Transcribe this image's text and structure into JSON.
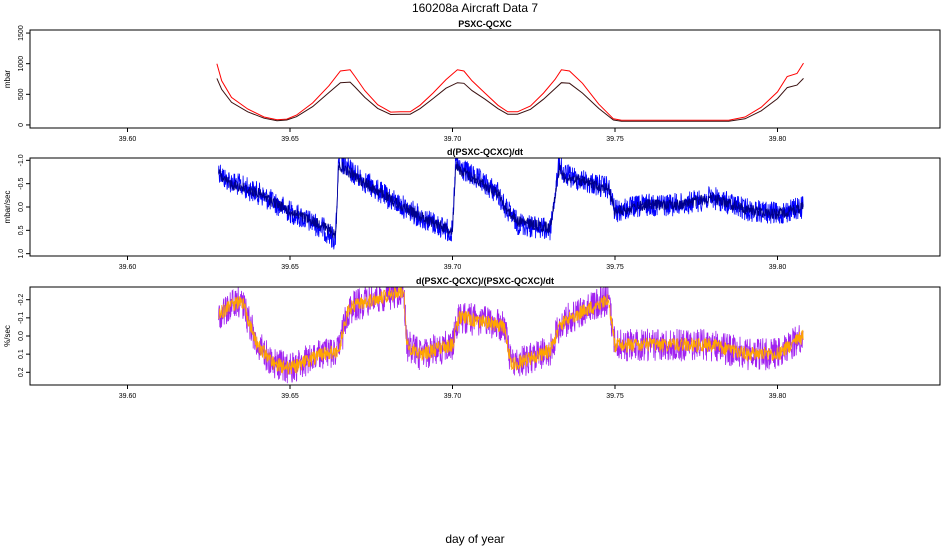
{
  "figure": {
    "title": "160208a   Aircraft Data 7",
    "xlabel": "day of year"
  },
  "colors": {
    "red": "#ff0000",
    "dark": "#3a1010",
    "blue": "#0000ff",
    "navy": "#00008b",
    "purple": "#a020f0",
    "orange": "#ffa500"
  },
  "chart_data": [
    {
      "type": "line",
      "title": "PSXC-QCXC",
      "xlabel": "",
      "ylabel": "mbar",
      "xlim": [
        39.57,
        39.85
      ],
      "ylim": [
        -50,
        1550
      ],
      "x_ticks": [
        "39.60",
        "39.65",
        "39.70",
        "39.75",
        "39.80"
      ],
      "y_ticks": [
        "0",
        "500",
        "1000",
        "1500"
      ],
      "series": [
        {
          "name": "PSXC-QCXC (red)",
          "color": "red",
          "x": [
            39.6275,
            39.629,
            39.632,
            39.637,
            39.642,
            39.646,
            39.649,
            39.652,
            39.657,
            39.662,
            39.6655,
            39.6685,
            39.67,
            39.673,
            39.677,
            39.681,
            39.684,
            39.687,
            39.69,
            39.694,
            39.698,
            39.7015,
            39.7035,
            39.706,
            39.71,
            39.714,
            39.717,
            39.72,
            39.724,
            39.728,
            39.7315,
            39.7335,
            39.736,
            39.74,
            39.745,
            39.7495,
            39.752,
            39.76,
            39.77,
            39.78,
            39.785,
            39.79,
            39.795,
            39.8,
            39.803,
            39.806,
            39.808
          ],
          "y": [
            1000,
            720,
            450,
            260,
            130,
            85,
            95,
            160,
            360,
            640,
            880,
            900,
            790,
            560,
            330,
            210,
            215,
            215,
            320,
            520,
            740,
            900,
            880,
            720,
            520,
            320,
            215,
            215,
            310,
            520,
            740,
            900,
            880,
            680,
            340,
            100,
            75,
            75,
            75,
            75,
            75,
            130,
            290,
            540,
            790,
            840,
            1010
          ]
        },
        {
          "name": "PSXC-QCXC (dark)",
          "color": "dark",
          "x": [
            39.6275,
            39.629,
            39.632,
            39.637,
            39.642,
            39.646,
            39.649,
            39.652,
            39.657,
            39.662,
            39.6655,
            39.6685,
            39.67,
            39.673,
            39.677,
            39.681,
            39.684,
            39.687,
            39.69,
            39.694,
            39.698,
            39.7015,
            39.7035,
            39.706,
            39.71,
            39.714,
            39.717,
            39.72,
            39.724,
            39.728,
            39.7315,
            39.7335,
            39.736,
            39.74,
            39.745,
            39.7495,
            39.752,
            39.76,
            39.77,
            39.78,
            39.785,
            39.79,
            39.795,
            39.8,
            39.803,
            39.806,
            39.808
          ],
          "y": [
            760,
            580,
            370,
            215,
            110,
            70,
            80,
            135,
            300,
            530,
            690,
            700,
            620,
            450,
            270,
            170,
            175,
            175,
            265,
            430,
            600,
            690,
            680,
            560,
            420,
            265,
            175,
            175,
            255,
            420,
            590,
            690,
            680,
            520,
            270,
            80,
            60,
            60,
            60,
            60,
            60,
            100,
            230,
            430,
            610,
            650,
            760
          ]
        }
      ]
    },
    {
      "type": "line",
      "title": "d(PSXC-QCXC)/dt",
      "xlabel": "",
      "ylabel": "mbar/sec",
      "xlim": [
        39.57,
        39.85
      ],
      "ylim": [
        1.05,
        -1.05
      ],
      "x_ticks": [
        "39.60",
        "39.65",
        "39.70",
        "39.75",
        "39.80"
      ],
      "y_ticks": [
        "-1.0",
        "-0.5",
        "0.0",
        "0.5",
        "1.0"
      ],
      "series": [
        {
          "name": "d(PSXC-QCXC)/dt (blue)",
          "color": "blue",
          "x": [
            39.628,
            39.63,
            39.64,
            39.65,
            39.66,
            39.664,
            39.665,
            39.668,
            39.68,
            39.69,
            39.7,
            39.701,
            39.702,
            39.714,
            39.716,
            39.72,
            39.73,
            39.733,
            39.734,
            39.748,
            39.75,
            39.76,
            39.77,
            39.78,
            39.79,
            39.8,
            39.808
          ],
          "y": [
            -0.8,
            -0.6,
            -0.3,
            0.1,
            0.45,
            0.7,
            -1.0,
            -0.8,
            -0.2,
            0.2,
            0.55,
            -1.0,
            -0.85,
            -0.3,
            0.0,
            0.35,
            0.5,
            -1.0,
            -0.7,
            -0.4,
            0.1,
            -0.05,
            -0.05,
            -0.2,
            0.05,
            0.15,
            0.0
          ],
          "noise": 0.25
        },
        {
          "name": "d(PSXC-QCXC)/dt (navy)",
          "color": "navy",
          "x": [
            39.628,
            39.63,
            39.64,
            39.65,
            39.66,
            39.664,
            39.665,
            39.668,
            39.68,
            39.69,
            39.7,
            39.701,
            39.702,
            39.714,
            39.716,
            39.72,
            39.73,
            39.733,
            39.734,
            39.748,
            39.75,
            39.76,
            39.77,
            39.78,
            39.79,
            39.8,
            39.808
          ],
          "y": [
            -0.75,
            -0.55,
            -0.3,
            0.1,
            0.4,
            0.6,
            -0.9,
            -0.75,
            -0.2,
            0.2,
            0.5,
            -0.9,
            -0.8,
            -0.3,
            0.0,
            0.3,
            0.45,
            -0.9,
            -0.65,
            -0.4,
            0.1,
            -0.05,
            -0.05,
            -0.2,
            0.05,
            0.15,
            0.0
          ],
          "noise": 0.12
        }
      ]
    },
    {
      "type": "line",
      "title": "d(PSXC-QCXC)/(PSXC-QCXC)/dt",
      "xlabel": "",
      "ylabel": "%/sec",
      "xlim": [
        39.57,
        39.85
      ],
      "ylim": [
        0.27,
        -0.27
      ],
      "x_ticks": [
        "39.60",
        "39.65",
        "39.70",
        "39.75",
        "39.80"
      ],
      "y_ticks": [
        "-0.2",
        "-0.1",
        "0.0",
        "0.1",
        "0.2"
      ],
      "series": [
        {
          "name": "d(PSXC-QCXC)/(PSXC-QCXC)/dt (purple)",
          "color": "purple",
          "x": [
            39.628,
            39.635,
            39.64,
            39.645,
            39.65,
            39.66,
            39.665,
            39.668,
            39.675,
            39.685,
            39.686,
            39.69,
            39.7,
            39.702,
            39.704,
            39.716,
            39.718,
            39.72,
            39.73,
            39.733,
            39.736,
            39.748,
            39.75,
            39.76,
            39.77,
            39.78,
            39.79,
            39.8,
            39.808
          ],
          "y": [
            -0.12,
            -0.2,
            0.05,
            0.15,
            0.18,
            0.1,
            0.08,
            -0.15,
            -0.2,
            -0.25,
            0.05,
            0.1,
            0.05,
            -0.1,
            -0.1,
            -0.05,
            0.15,
            0.15,
            0.08,
            -0.05,
            -0.1,
            -0.2,
            0.05,
            0.05,
            0.05,
            0.05,
            0.1,
            0.1,
            0.0
          ],
          "noise": 0.09
        },
        {
          "name": "d(PSXC-QCXC)/(PSXC-QCXC)/dt (orange)",
          "color": "orange",
          "x": [
            39.628,
            39.635,
            39.64,
            39.645,
            39.65,
            39.66,
            39.665,
            39.668,
            39.675,
            39.685,
            39.686,
            39.69,
            39.7,
            39.702,
            39.704,
            39.716,
            39.718,
            39.72,
            39.73,
            39.733,
            39.736,
            39.748,
            39.75,
            39.76,
            39.77,
            39.78,
            39.79,
            39.8,
            39.808
          ],
          "y": [
            -0.12,
            -0.2,
            0.05,
            0.15,
            0.18,
            0.1,
            0.08,
            -0.15,
            -0.2,
            -0.25,
            0.05,
            0.1,
            0.05,
            -0.1,
            -0.1,
            -0.05,
            0.15,
            0.15,
            0.08,
            -0.05,
            -0.1,
            -0.2,
            0.05,
            0.05,
            0.05,
            0.05,
            0.1,
            0.1,
            0.0
          ],
          "noise": 0.04
        }
      ]
    }
  ]
}
